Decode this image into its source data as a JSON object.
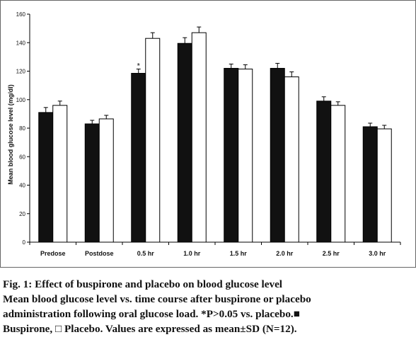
{
  "chart_data": {
    "type": "bar",
    "ylabel": "Mean blood glucose level (mg/dl)",
    "xlabel": "",
    "ylim": [
      0,
      160
    ],
    "yticks": [
      0,
      20,
      40,
      60,
      80,
      100,
      120,
      140,
      160
    ],
    "grid": false,
    "categories": [
      "Predose",
      "Postdose",
      "0.5 hr",
      "1.0 hr",
      "1.5 hr",
      "2.0 hr",
      "2.5 hr",
      "3.0 hr"
    ],
    "series": [
      {
        "name": "Buspirone",
        "color": "#111111",
        "values": [
          91,
          83,
          118.5,
          139.5,
          122,
          122,
          99,
          81
        ],
        "errors": [
          3.5,
          2.5,
          3,
          4,
          3,
          3.5,
          3,
          2.5
        ]
      },
      {
        "name": "Placebo",
        "color": "#ffffff",
        "values": [
          96,
          86.5,
          143,
          147,
          121.5,
          116,
          96,
          79.5
        ],
        "errors": [
          3,
          2.5,
          4,
          4,
          3,
          3.5,
          2.5,
          2.5
        ]
      }
    ],
    "annotations": [
      {
        "category": "0.5 hr",
        "series": "Buspirone",
        "text": "*"
      }
    ]
  },
  "caption": {
    "line1": "Fig. 1: Effect of buspirone and placebo on blood glucose level",
    "line2": "Mean blood glucose level vs. time course after buspirone or placebo",
    "line3": "administration following oral glucose load. *P>0.05 vs. placebo.■",
    "line4": "Buspirone, □  Placebo. Values are expressed as mean±SD (N=12)."
  }
}
